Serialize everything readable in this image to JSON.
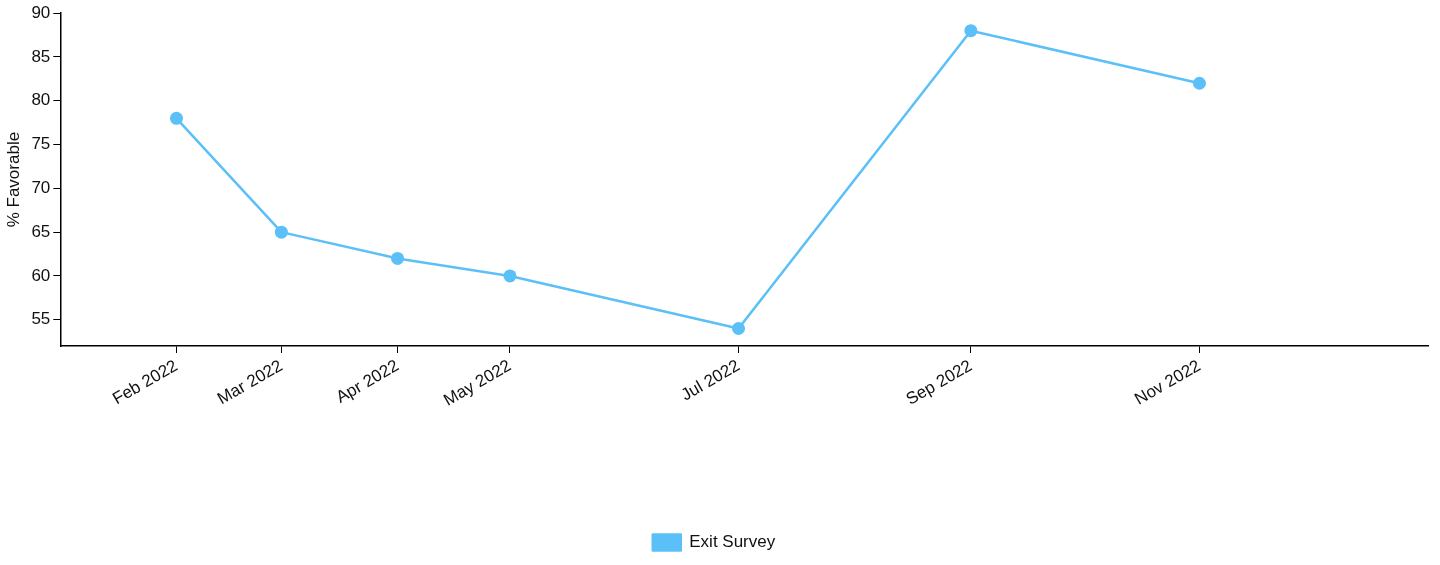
{
  "chart_data": {
    "type": "line",
    "ylabel": "% Favorable",
    "x": [
      "2022-02",
      "2022-03",
      "2022-04",
      "2022-05",
      "2022-07",
      "2022-09",
      "2022-11"
    ],
    "series": [
      {
        "name": "Exit Survey",
        "color": "#5bc0f8",
        "values": [
          78,
          65,
          62,
          60,
          54,
          88,
          82
        ]
      }
    ],
    "xlim": [
      "2022-01",
      "2023-01"
    ],
    "xticks": [
      {
        "value": "2022-02",
        "label": "Feb 2022"
      },
      {
        "value": "2022-03",
        "label": "Mar 2022"
      },
      {
        "value": "2022-04",
        "label": "Apr 2022"
      },
      {
        "value": "2022-05",
        "label": "May 2022"
      },
      {
        "value": "2022-07",
        "label": "Jul 2022"
      },
      {
        "value": "2022-09",
        "label": "Sep 2022"
      },
      {
        "value": "2022-11",
        "label": "Nov 2022"
      }
    ],
    "ylim": [
      52,
      90
    ],
    "yticks": [
      55,
      60,
      65,
      70,
      75,
      80,
      85,
      90
    ],
    "grid": false,
    "legend": "bottom",
    "marker": "circle",
    "line_style": "solid"
  }
}
